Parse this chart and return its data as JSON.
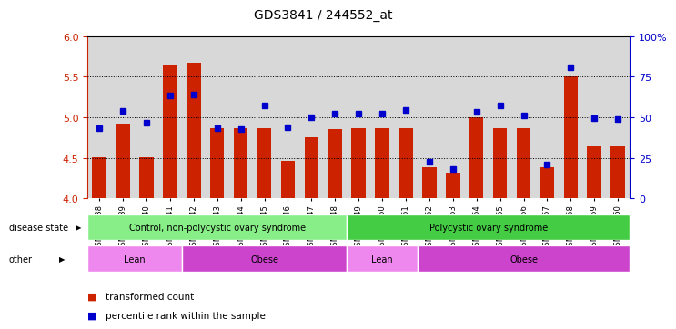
{
  "title": "GDS3841 / 244552_at",
  "samples": [
    "GSM277438",
    "GSM277439",
    "GSM277440",
    "GSM277441",
    "GSM277442",
    "GSM277443",
    "GSM277444",
    "GSM277445",
    "GSM277446",
    "GSM277447",
    "GSM277448",
    "GSM277449",
    "GSM277450",
    "GSM277451",
    "GSM277452",
    "GSM277453",
    "GSM277454",
    "GSM277455",
    "GSM277456",
    "GSM277457",
    "GSM277458",
    "GSM277459",
    "GSM277460"
  ],
  "bar_heights": [
    4.51,
    4.92,
    4.51,
    5.65,
    5.67,
    4.87,
    4.87,
    4.87,
    4.46,
    4.76,
    4.85,
    4.87,
    4.87,
    4.87,
    4.38,
    4.32,
    5.0,
    4.87,
    4.87,
    4.39,
    5.5,
    4.64,
    4.64
  ],
  "blue_dots_left": [
    4.87,
    5.08,
    4.93,
    5.27,
    5.28,
    4.87,
    4.86,
    5.15,
    4.88,
    5.0,
    5.05,
    5.05,
    5.05,
    5.09,
    4.45,
    4.36,
    5.07,
    5.15,
    5.02,
    4.42,
    5.62,
    4.99,
    4.98
  ],
  "y_min": 4.0,
  "y_max": 6.0,
  "bar_color": "#cc2200",
  "dot_color": "#0000cc",
  "bg_color": "#d8d8d8",
  "plot_bg": "#ffffff",
  "disease_state_groups": [
    {
      "label": "Control, non-polycystic ovary syndrome",
      "start": 0,
      "end": 10,
      "color": "#88ee88"
    },
    {
      "label": "Polycystic ovary syndrome",
      "start": 11,
      "end": 22,
      "color": "#44cc44"
    }
  ],
  "other_groups": [
    {
      "label": "Lean",
      "start": 0,
      "end": 3,
      "color": "#ee88ee"
    },
    {
      "label": "Obese",
      "start": 4,
      "end": 10,
      "color": "#cc44cc"
    },
    {
      "label": "Lean",
      "start": 11,
      "end": 13,
      "color": "#ee88ee"
    },
    {
      "label": "Obese",
      "start": 14,
      "end": 22,
      "color": "#cc44cc"
    }
  ],
  "left_labels": [
    {
      "text": "disease state",
      "row": "disease"
    },
    {
      "text": "other",
      "row": "other"
    }
  ],
  "legend_items": [
    {
      "label": "transformed count",
      "color": "#cc2200"
    },
    {
      "label": "percentile rank within the sample",
      "color": "#0000cc"
    }
  ],
  "yticks_left": [
    4.0,
    4.5,
    5.0,
    5.5,
    6.0
  ],
  "yticks_right": [
    0,
    25,
    50,
    75,
    100
  ],
  "ytick_right_labels": [
    "0",
    "25",
    "50",
    "75",
    "100%"
  ]
}
